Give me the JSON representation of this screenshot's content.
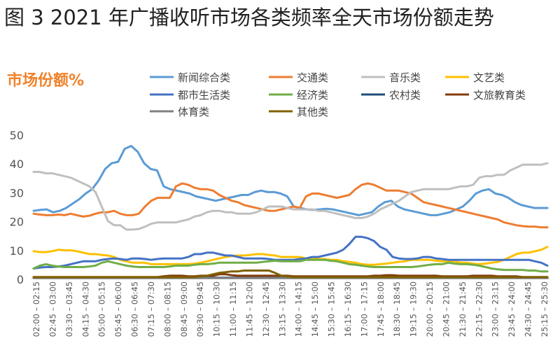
{
  "figure_title": "图 3 2021 年广播收听市场各类频率全天市场份额走势",
  "chart_data": {
    "type": "line",
    "title": "市场份额%",
    "title_color": "#f0822a",
    "ylim": [
      0,
      50
    ],
    "yticks": [
      0,
      10,
      20,
      30,
      40,
      50
    ],
    "grid": false,
    "legend_position": "top",
    "x_tick_labels": [
      "02:00 – 02:15",
      "02:45 – 03:00",
      "03:30 – 03:45",
      "04:15 – 04:30",
      "05:00 – 05:15",
      "05:45 – 06:00",
      "06:30 – 06:45",
      "07:15 – 07:30",
      "08:00 – 08:15",
      "08:45 – 09:00",
      "09:30 – 09:45",
      "10:15 – 10:30",
      "11:00 – 11:15",
      "11:45 – 12:00",
      "12:30 – 12:45",
      "13:15 – 13:30",
      "14:00 – 14:15",
      "14:45 – 15:00",
      "15:30 – 15:45",
      "16:15 – 16:30",
      "17:00 – 17:15",
      "17:45 – 18:00",
      "18:30 – 18:45",
      "19:15 – 19:30",
      "20:00 – 20:15",
      "20:45 – 21:00",
      "21:30 – 21:45",
      "22:15 – 22:30",
      "23:00 – 23:15",
      "23:45 – 24:00",
      "24:30 – 24:45",
      "25:15 – 25:30"
    ],
    "series": [
      {
        "name": "新闻综合类",
        "color": "#5b9bd5",
        "values": [
          23.5,
          23.8,
          24,
          23,
          23.5,
          24.5,
          26,
          27.5,
          29.5,
          31,
          34,
          38,
          40,
          40.5,
          45,
          46,
          44,
          40,
          38,
          37.5,
          32,
          31,
          30.5,
          30,
          29.5,
          28.5,
          28,
          27.5,
          27,
          27.5,
          28,
          28.5,
          29,
          29,
          30,
          30.5,
          30,
          30,
          29.5,
          28.5,
          25,
          24.5,
          24,
          23.8,
          24,
          24.2,
          24,
          23.5,
          23,
          22.5,
          22,
          22.5,
          23,
          25,
          26.5,
          27,
          25,
          24,
          23.5,
          23,
          22.5,
          22,
          22,
          22.5,
          23,
          24,
          25,
          27,
          29.5,
          30.5,
          31,
          29.5,
          29,
          28,
          26.5,
          25.5,
          25,
          24.5,
          24.5,
          24.5
        ]
      },
      {
        "name": "交通类",
        "color": "#ed7d31",
        "values": [
          22.5,
          22.2,
          22,
          22,
          22.2,
          22,
          22.5,
          22,
          21.5,
          21.8,
          22.5,
          23,
          23,
          23.5,
          22.5,
          22,
          22,
          22.5,
          25,
          27,
          28,
          28,
          28,
          32,
          33,
          32.5,
          31.5,
          31,
          31,
          30.5,
          29,
          28,
          27,
          26.5,
          25.5,
          25,
          24.5,
          24,
          23.5,
          23.5,
          24,
          24.5,
          25,
          24.5,
          28.5,
          29.5,
          29.5,
          29,
          28.5,
          28,
          28.5,
          29,
          31,
          32.5,
          33,
          32.5,
          31.5,
          30.5,
          30.5,
          30.5,
          30,
          29.5,
          28,
          26.5,
          26,
          25.5,
          25,
          24.5,
          24,
          23.5,
          23,
          22.5,
          22,
          21.5,
          21,
          20.5,
          19.5,
          19,
          18.5,
          18.2,
          18,
          18,
          17.8,
          17.8
        ]
      },
      {
        "name": "音乐类",
        "color": "#bfbfbf",
        "values": [
          37,
          37,
          36.5,
          36.5,
          36,
          35.5,
          35,
          34,
          33,
          32,
          30,
          25,
          20,
          18.5,
          18.5,
          17,
          17,
          17.2,
          18,
          19,
          19.5,
          19.5,
          19.5,
          19.5,
          20,
          20.5,
          21.5,
          22,
          23,
          23.5,
          23.5,
          23,
          23,
          22.5,
          22.5,
          22.5,
          23,
          24,
          25,
          25,
          25,
          24.5,
          24,
          24,
          24,
          24,
          23.5,
          23.5,
          23,
          22.5,
          22,
          21.5,
          21,
          21,
          21.5,
          22.5,
          24,
          25,
          26,
          27,
          28.5,
          30,
          30.5,
          31,
          31,
          31,
          31,
          31,
          31.5,
          32,
          32,
          32.5,
          35,
          35.5,
          35.5,
          36,
          36,
          37.5,
          38.5,
          39.5,
          39.5,
          39.5,
          39.5,
          40
        ]
      },
      {
        "name": "文艺类",
        "color": "#ffc000",
        "values": [
          9.5,
          9.2,
          9.2,
          9.5,
          10,
          9.8,
          9.8,
          9.5,
          9,
          8.5,
          8.5,
          8.2,
          8,
          7.5,
          6.5,
          6,
          5.5,
          5.5,
          5.5,
          5,
          5,
          5,
          5,
          5,
          5,
          5,
          5.2,
          5.5,
          6,
          6.5,
          7,
          7.5,
          7.8,
          8,
          8,
          8.2,
          8.5,
          8.5,
          8.2,
          8,
          7.5,
          7.5,
          7.5,
          7.5,
          7,
          7,
          6.8,
          6.8,
          6.5,
          6.5,
          6,
          5.8,
          5.5,
          5,
          4.8,
          4.8,
          5,
          5.2,
          5.5,
          5.8,
          6,
          6.5,
          6.5,
          6.5,
          6.5,
          6.2,
          6,
          6,
          6,
          5.5,
          5.5,
          5.2,
          5,
          5.2,
          5.5,
          5.8,
          6.5,
          7.5,
          8.5,
          9,
          9,
          9.5,
          10,
          11
        ]
      },
      {
        "name": "都市生活类",
        "color": "#4472c4",
        "values": [
          3.5,
          3.8,
          4,
          4,
          4.2,
          4.5,
          5,
          5.5,
          6,
          6,
          6,
          6.5,
          6.8,
          7,
          6.8,
          6.5,
          7,
          7,
          6.8,
          6.5,
          6.8,
          7,
          7,
          7,
          7,
          7.5,
          8.5,
          8.5,
          9,
          9,
          8.5,
          8,
          8,
          7.5,
          7,
          7,
          7,
          7,
          6.8,
          6.5,
          6.5,
          6.5,
          6.5,
          6.8,
          7,
          7.5,
          7.5,
          8,
          8.5,
          9,
          10,
          12,
          14.5,
          14.5,
          14,
          13,
          11,
          10,
          7.5,
          7,
          6.8,
          6.8,
          7,
          7.5,
          7.5,
          7,
          6.8,
          6.5,
          6.5,
          6.5,
          6.5,
          6.5,
          6.5,
          6.5,
          6.5,
          6.5,
          6.5,
          6.5,
          6.5,
          6.5,
          6.5,
          6,
          5.5,
          4.5
        ]
      },
      {
        "name": "经济类",
        "color": "#70ad47",
        "values": [
          3.5,
          4.5,
          5,
          4.5,
          4.2,
          4,
          4,
          4,
          4,
          4.2,
          4.5,
          5.5,
          6,
          5.5,
          5,
          4.5,
          4.2,
          4,
          4,
          4,
          4,
          4,
          4.2,
          4.5,
          4.5,
          4.5,
          4.8,
          5,
          5,
          5.2,
          5.5,
          5.5,
          5.5,
          5.5,
          5.5,
          5.5,
          5.5,
          5.8,
          6,
          6.2,
          6,
          6,
          6,
          6,
          6.5,
          6.5,
          6.5,
          6.5,
          6.2,
          6,
          5.5,
          5,
          4.8,
          4.5,
          4.2,
          4,
          4,
          4,
          4,
          4,
          4,
          4,
          4.2,
          4.5,
          4.8,
          5,
          5,
          5.5,
          5.2,
          5,
          5,
          4.8,
          4.5,
          4,
          3.5,
          3.2,
          3,
          3,
          3,
          3,
          2.8,
          2.8,
          2.5,
          2.5
        ]
      },
      {
        "name": "农村类",
        "color": "#1f4e79",
        "values": [
          0.3,
          0.3,
          0.3,
          0.3,
          0.3,
          0.3,
          0.3,
          0.3,
          0.3,
          0.3,
          0.3,
          0.3,
          0.3,
          0.3,
          0.3,
          0.3,
          0.3,
          0.3,
          0.3,
          0.3,
          0.3,
          0.3,
          0.3,
          0.3,
          0.3,
          0.3,
          0.3,
          0.3,
          0.3,
          0.3,
          0.3,
          0.3,
          0.3,
          0.3,
          0.3,
          0.3,
          0.3,
          0.3,
          0.3,
          0.3,
          0.3,
          0.3,
          0.3,
          0.3,
          0.3,
          0.3,
          0.3,
          0.3,
          0.3,
          0.3,
          0.3,
          0.3,
          0.3,
          0.3,
          0.3,
          0.3,
          0.3,
          0.3,
          0.3,
          0.3,
          0.3,
          0.3,
          0.3,
          0.3,
          0.3,
          0.3,
          0.3,
          0.3,
          0.3,
          0.3,
          0.3,
          0.3,
          0.3,
          0.3,
          0.3,
          0.3,
          0.3,
          0.3,
          0.3,
          0.3,
          0.3,
          0.3,
          0.3,
          0.3
        ]
      },
      {
        "name": "文旅教育类",
        "color": "#843c0c",
        "values": [
          0.5,
          0.5,
          0.5,
          0.5,
          0.5,
          0.5,
          0.5,
          0.5,
          0.5,
          0.5,
          0.5,
          0.5,
          0.5,
          0.5,
          0.5,
          0.5,
          0.5,
          0.5,
          0.5,
          0.5,
          0.5,
          0.8,
          1,
          1,
          1,
          0.8,
          0.8,
          1,
          1,
          1,
          1.5,
          1.5,
          1.2,
          1,
          1,
          1,
          1,
          1,
          1,
          1,
          1,
          1,
          0.8,
          0.8,
          0.8,
          0.8,
          0.8,
          0.8,
          0.8,
          0.8,
          0.8,
          0.8,
          0.8,
          0.8,
          0.8,
          1,
          1,
          1.2,
          1.2,
          1,
          1,
          1,
          1,
          1,
          1,
          1,
          0.8,
          0.8,
          0.8,
          0.8,
          0.8,
          1,
          1,
          1,
          1,
          0.8,
          0.8,
          0.8,
          0.8,
          0.5,
          0.5,
          0.5,
          0.5,
          0.5
        ]
      },
      {
        "name": "体育类",
        "color": "#7f7f7f",
        "values": [
          0.2,
          0.2,
          0.2,
          0.2,
          0.2,
          0.2,
          0.2,
          0.2,
          0.2,
          0.2,
          0.2,
          0.2,
          0.2,
          0.2,
          0.2,
          0.2,
          0.2,
          0.2,
          0.2,
          0.2,
          0.2,
          0.2,
          0.2,
          0.2,
          0.2,
          0.2,
          0.2,
          0.2,
          0.2,
          0.2,
          0.2,
          0.2,
          0.2,
          0.2,
          0.2,
          0.2,
          0.2,
          0.2,
          0.2,
          0.2,
          0.2,
          0.2,
          0.2,
          0.2,
          0.2,
          0.2,
          0.2,
          0.2,
          0.2,
          0.2,
          0.2,
          0.2,
          0.2,
          0.2,
          0.2,
          0.2,
          0.2,
          0.2,
          0.2,
          0.2,
          0.2,
          0.2,
          0.2,
          0.2,
          0.2,
          0.2,
          0.2,
          0.2,
          0.2,
          0.2,
          0.2,
          0.2,
          0.2,
          0.2,
          0.2,
          0.2,
          0.2,
          0.2,
          0.2,
          0.2,
          0.2,
          0.2,
          0.2,
          0.2
        ]
      },
      {
        "name": "其他类",
        "color": "#806000",
        "values": [
          0.5,
          0.5,
          0.5,
          0.5,
          0.5,
          0.5,
          0.5,
          0.5,
          0.5,
          0.5,
          0.5,
          0.5,
          0.5,
          0.5,
          0.5,
          0.5,
          0.5,
          0.5,
          0.5,
          0.5,
          0.5,
          0.5,
          0.5,
          0.5,
          0.5,
          0.5,
          0.5,
          0.8,
          1,
          1.5,
          2,
          2.2,
          2.5,
          2.5,
          2.8,
          2.8,
          2.8,
          2.8,
          2.8,
          2,
          1,
          0.8,
          0.5,
          0.5,
          0.5,
          0.5,
          0.5,
          0.5,
          0.5,
          0.5,
          0.5,
          0.5,
          0.5,
          0.5,
          0.5,
          0.5,
          0.5,
          0.5,
          0.5,
          0.5,
          0.5,
          0.5,
          0.5,
          0.5,
          0.5,
          0.5,
          0.5,
          0.5,
          0.5,
          0.5,
          0.5,
          0.5,
          0.5,
          0.5,
          0.5,
          0.5,
          0.5,
          0.5,
          0.5,
          0.5,
          0.5,
          0.5,
          0.5,
          0.5
        ]
      }
    ]
  }
}
